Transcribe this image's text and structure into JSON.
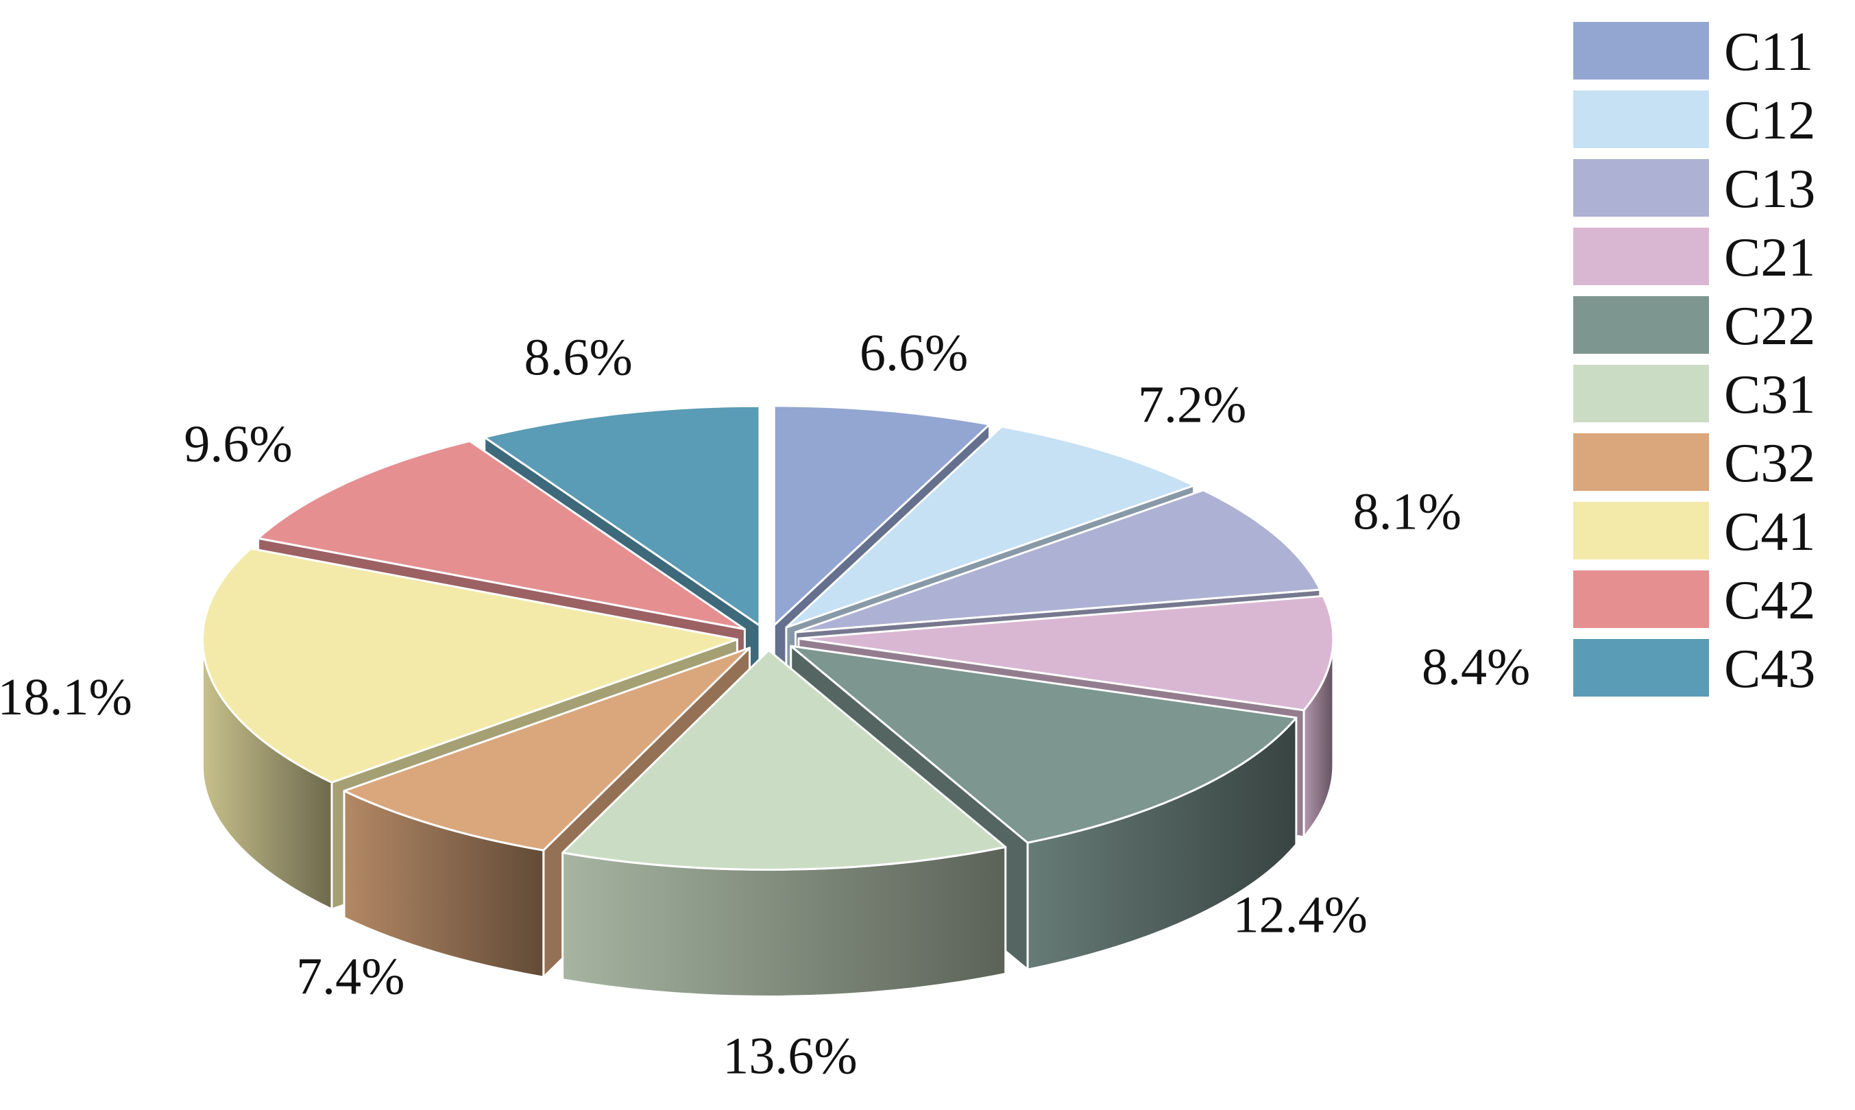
{
  "chart_data": {
    "type": "pie",
    "title": "",
    "style": "3d-exploded",
    "legend_position": "top-right",
    "slices": [
      {
        "name": "C11",
        "label": "6.6%",
        "value": 6.6,
        "color": "#93a5d1"
      },
      {
        "name": "C12",
        "label": "7.2%",
        "value": 7.2,
        "color": "#c6e0f4"
      },
      {
        "name": "C13",
        "label": "8.1%",
        "value": 8.1,
        "color": "#adb1d3"
      },
      {
        "name": "C21",
        "label": "8.4%",
        "value": 8.4,
        "color": "#d9b7d3"
      },
      {
        "name": "C22",
        "label": "12.4%",
        "value": 12.4,
        "color": "#7d9690"
      },
      {
        "name": "C31",
        "label": "13.6%",
        "value": 13.6,
        "color": "#cbdcc4"
      },
      {
        "name": "C32",
        "label": "7.4%",
        "value": 7.4,
        "color": "#daa67b"
      },
      {
        "name": "C41",
        "label": "18.1%",
        "value": 18.1,
        "color": "#f3eaaa"
      },
      {
        "name": "C42",
        "label": "9.6%",
        "value": 9.6,
        "color": "#e58f91"
      },
      {
        "name": "C43",
        "label": "8.6%",
        "value": 8.6,
        "color": "#5a9bb5"
      }
    ]
  }
}
